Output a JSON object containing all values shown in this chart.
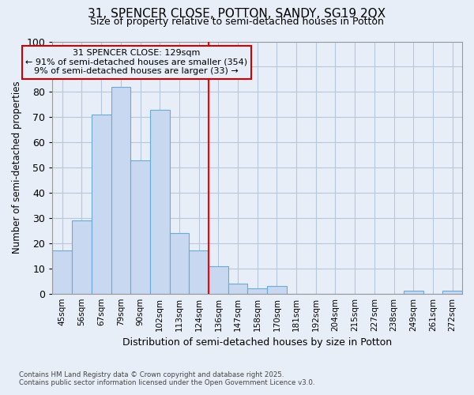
{
  "title1": "31, SPENCER CLOSE, POTTON, SANDY, SG19 2QX",
  "title2": "Size of property relative to semi-detached houses in Potton",
  "xlabel": "Distribution of semi-detached houses by size in Potton",
  "ylabel": "Number of semi-detached properties",
  "categories": [
    "45sqm",
    "56sqm",
    "67sqm",
    "79sqm",
    "90sqm",
    "102sqm",
    "113sqm",
    "124sqm",
    "136sqm",
    "147sqm",
    "158sqm",
    "170sqm",
    "181sqm",
    "192sqm",
    "204sqm",
    "215sqm",
    "227sqm",
    "238sqm",
    "249sqm",
    "261sqm",
    "272sqm"
  ],
  "values": [
    17,
    29,
    71,
    82,
    53,
    73,
    24,
    17,
    11,
    4,
    2,
    3,
    0,
    0,
    0,
    0,
    0,
    0,
    1,
    0,
    1
  ],
  "bar_color": "#c8d8f0",
  "bar_edge_color": "#6aaad8",
  "grid_color": "#b8c8dc",
  "bg_color": "#e8eef8",
  "vline_xindex": 7.5,
  "annotation_title": "31 SPENCER CLOSE: 129sqm",
  "annotation_line1": "← 91% of semi-detached houses are smaller (354)",
  "annotation_line2": "9% of semi-detached houses are larger (33) →",
  "annotation_box_color": "#cc0000",
  "ylim": [
    0,
    100
  ],
  "yticks": [
    0,
    10,
    20,
    30,
    40,
    50,
    60,
    70,
    80,
    90,
    100
  ],
  "footnote1": "Contains HM Land Registry data © Crown copyright and database right 2025.",
  "footnote2": "Contains public sector information licensed under the Open Government Licence v3.0."
}
